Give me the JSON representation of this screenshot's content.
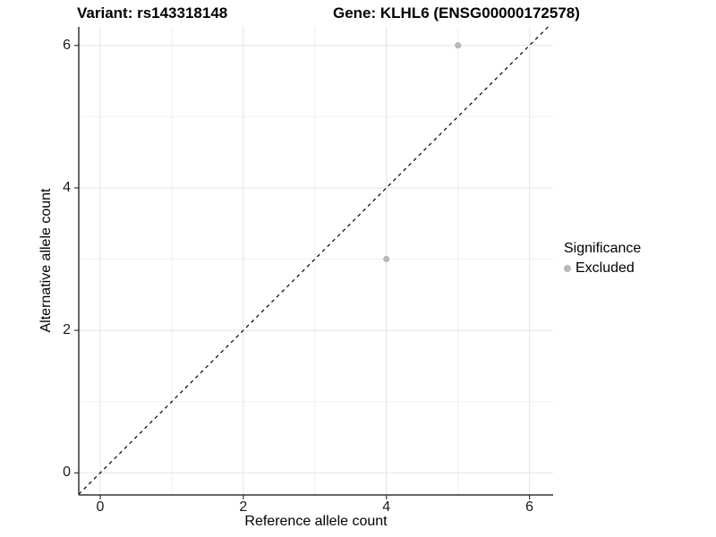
{
  "chart_data": {
    "type": "scatter",
    "title_left": "Variant: rs143318148",
    "title_right": "Gene: KLHL6 (ENSG00000172578)",
    "xlabel": "Reference allele count",
    "ylabel": "Alternative allele count",
    "x_domain": [
      -0.3,
      6.33
    ],
    "y_domain": [
      -0.31,
      6.26
    ],
    "x_major_ticks": [
      0,
      2,
      4,
      6
    ],
    "x_minor_ticks": [
      1,
      3,
      5
    ],
    "x_tick_labels": [
      "0",
      "2",
      "4",
      "6"
    ],
    "y_major_ticks": [
      0,
      2,
      4,
      6
    ],
    "y_minor_ticks": [
      1,
      3,
      5
    ],
    "y_tick_labels": [
      "0",
      "2",
      "4",
      "6"
    ],
    "grid": {
      "major_color": "#e4e4e4",
      "minor_color": "#f0f0f0",
      "grid_on": true
    },
    "axis_color": "#333333",
    "background": "#ffffff",
    "point_radius": 3.6,
    "series": [
      {
        "name": "Excluded",
        "color": "#b8b8b8",
        "points": [
          {
            "x": 5,
            "y": 6
          },
          {
            "x": 4,
            "y": 3
          }
        ]
      }
    ],
    "reference_line": {
      "type": "identity",
      "style": "dashed",
      "color": "#000000"
    },
    "legend": {
      "title": "Significance",
      "position": "right",
      "items": [
        {
          "label": "Excluded",
          "color": "#b8b8b8"
        }
      ]
    }
  }
}
